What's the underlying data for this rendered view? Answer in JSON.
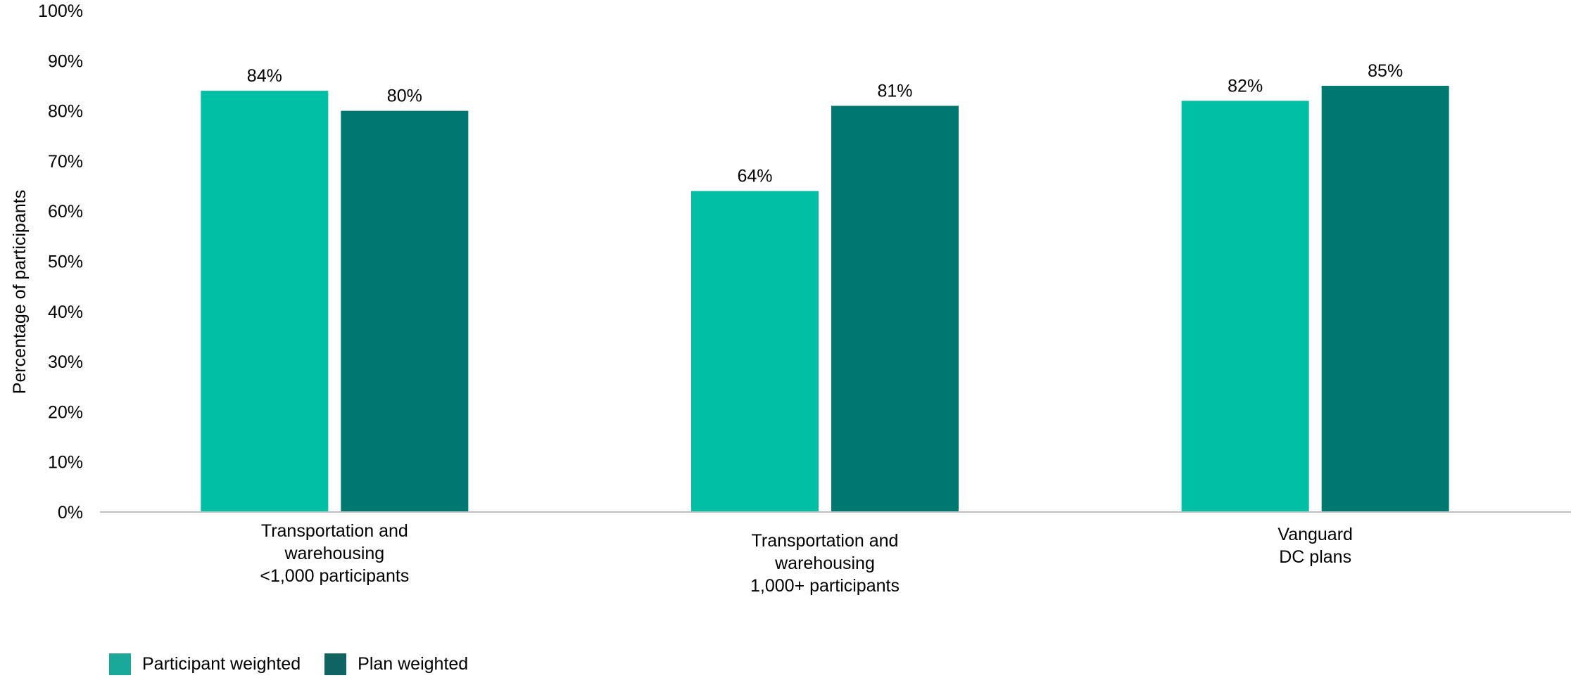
{
  "chart_data": {
    "type": "bar",
    "ylabel": "Percentage of participants",
    "ylim": [
      0,
      100
    ],
    "yticks": [
      "0%",
      "10%",
      "20%",
      "30%",
      "40%",
      "50%",
      "60%",
      "70%",
      "80%",
      "90%",
      "100%"
    ],
    "categories": [
      [
        "Transportation and",
        "warehousing",
        "<1,000 participants"
      ],
      [
        "Transportation and",
        "warehousing",
        "1,000+ participants"
      ],
      [
        "Vanguard",
        "DC plans"
      ]
    ],
    "series": [
      {
        "name": "Participant weighted",
        "color": "#00BFA5",
        "values": [
          84,
          64,
          82
        ],
        "labels": [
          "84%",
          "64%",
          "82%"
        ]
      },
      {
        "name": "Plan weighted",
        "color": "#007872",
        "values": [
          80,
          81,
          85
        ],
        "labels": [
          "80%",
          "81%",
          "85%"
        ]
      }
    ],
    "legend_position": "bottom-left",
    "grid": false
  }
}
